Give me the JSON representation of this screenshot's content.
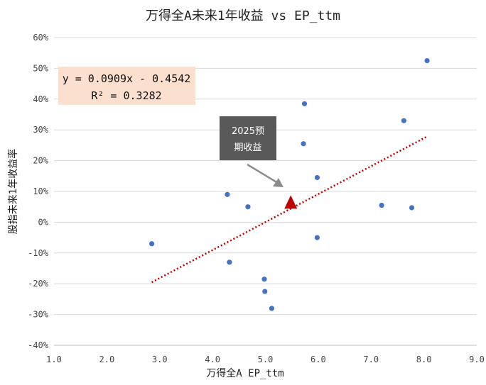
{
  "chart_data": {
    "type": "scatter",
    "title": "万得全A未来1年收益 vs EP_ttm",
    "xlabel": "万得全A EP_ttm",
    "ylabel": "股指未来1年收益率",
    "xlim": [
      1.0,
      9.0
    ],
    "ylim": [
      -40,
      60
    ],
    "x_ticks": [
      "1.0",
      "2.0",
      "3.0",
      "4.0",
      "5.0",
      "6.0",
      "7.0",
      "8.0",
      "9.0"
    ],
    "y_ticks": [
      "60%",
      "50%",
      "40%",
      "30%",
      "20%",
      "10%",
      "0%",
      "-10%",
      "-20%",
      "-30%",
      "-40%"
    ],
    "grid": "horizontal",
    "points": [
      {
        "x": 2.85,
        "y": -7
      },
      {
        "x": 4.28,
        "y": 9
      },
      {
        "x": 4.32,
        "y": -13
      },
      {
        "x": 4.67,
        "y": 5
      },
      {
        "x": 4.98,
        "y": -18.5
      },
      {
        "x": 4.99,
        "y": -22.5
      },
      {
        "x": 5.12,
        "y": -28
      },
      {
        "x": 5.72,
        "y": 25.5
      },
      {
        "x": 5.74,
        "y": 38.5
      },
      {
        "x": 5.98,
        "y": 14.5
      },
      {
        "x": 5.98,
        "y": -5
      },
      {
        "x": 7.2,
        "y": 5.5
      },
      {
        "x": 7.62,
        "y": 33
      },
      {
        "x": 7.77,
        "y": 4.7
      },
      {
        "x": 8.06,
        "y": 52.5
      }
    ],
    "highlight_point": {
      "x": 5.48,
      "y": 6
    },
    "trendline": {
      "x_start": 2.85,
      "x_end": 8.06,
      "slope": 0.0909,
      "intercept": -0.4542
    },
    "equation": {
      "line1": "y = 0.0909x - 0.4542",
      "line2": "R² = 0.3282"
    },
    "annotation": {
      "line1": "2025预",
      "line2": "期收益"
    },
    "colors": {
      "points": "#4472c4",
      "highlight": "#c00000",
      "trendline": "#c00000",
      "equation_bg": "#fbe0d0",
      "annotation_bg": "#595959",
      "arrow": "#8c8c8c",
      "grid": "#d9d9d9"
    }
  }
}
